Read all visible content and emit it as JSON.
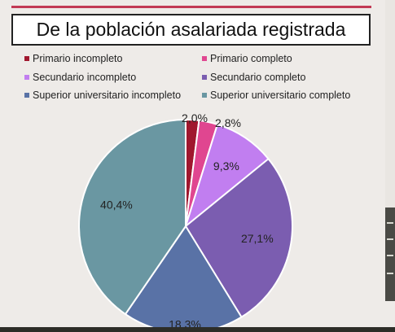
{
  "title": "De la población asalariada registrada",
  "chart_data": {
    "type": "pie",
    "title": "De la población asalariada registrada",
    "legend_placement": "top",
    "slices": [
      {
        "name": "Primario incompleto",
        "value": 2.0,
        "label": "2,0%",
        "color": "#a0172e"
      },
      {
        "name": "Primario completo",
        "value": 2.8,
        "label": "2,8%",
        "color": "#e04690"
      },
      {
        "name": "Secundario incompleto",
        "value": 9.3,
        "label": "9,3%",
        "color": "#c17ef0"
      },
      {
        "name": "Secundario completo",
        "value": 27.1,
        "label": "27,1%",
        "color": "#7b5db0"
      },
      {
        "name": "Superior universitario incompleto",
        "value": 18.3,
        "label": "18,3%",
        "color": "#5972a6"
      },
      {
        "name": "Superior universitario completo",
        "value": 40.4,
        "label": "40,4%",
        "color": "#6a97a2"
      }
    ]
  }
}
